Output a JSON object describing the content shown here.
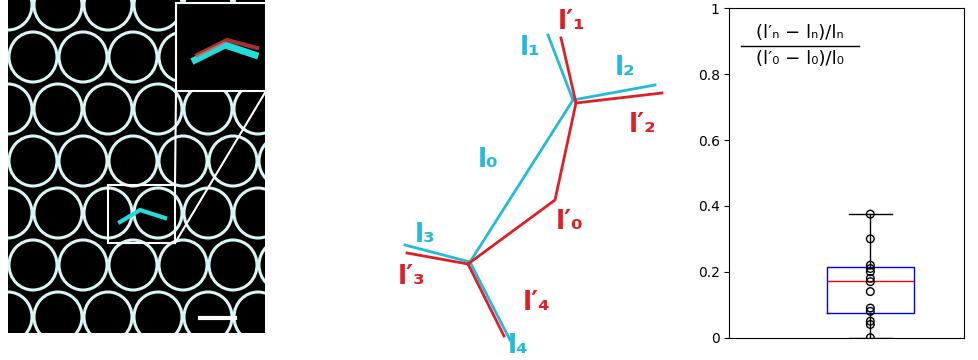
{
  "diagram": {
    "before": {
      "color": "#22bbdd",
      "labels": [
        "l₀",
        "l₁",
        "l₂",
        "l₃",
        "l₄"
      ]
    },
    "after": {
      "color": "#e01e25",
      "labels": [
        "l′₀",
        "l′₁",
        "l′₂",
        "l′₃",
        "l′₄"
      ]
    }
  },
  "chart_data": {
    "type": "box",
    "annotation": {
      "numerator": "(l′ₙ − lₙ)/lₙ",
      "denominator": "(l′₀ − l₀)/l₀"
    },
    "values": [
      0.375,
      0.3,
      0.22,
      0.21,
      0.2,
      0.18,
      0.17,
      0.14,
      0.09,
      0.08,
      0.05,
      0.04,
      0.0
    ],
    "q1": 0.075,
    "median": 0.172,
    "q3": 0.215,
    "whisker_low": 0.0,
    "whisker_high": 0.375,
    "ylim": [
      0,
      1
    ],
    "yticks": [
      0,
      0.2,
      0.4,
      0.6,
      0.8,
      1
    ],
    "tick_labels": "y"
  }
}
